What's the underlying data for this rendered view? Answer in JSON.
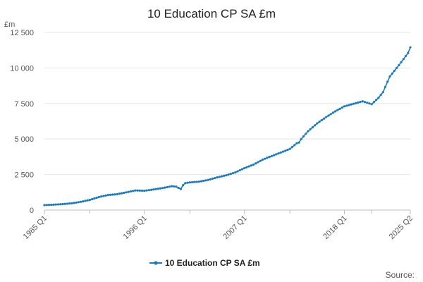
{
  "chart_data": {
    "type": "line",
    "title": "10 Education CP SA £m",
    "ylabel": "£m",
    "xlabel": "",
    "ylim": [
      0,
      12500
    ],
    "y_ticks": [
      "0",
      "2 500",
      "5 000",
      "7 500",
      "10 000",
      "12 500"
    ],
    "y_tick_values": [
      0,
      2500,
      5000,
      7500,
      10000,
      12500
    ],
    "x_tick_labels": [
      "1985 Q1",
      "1996 Q1",
      "2007 Q1",
      "2018 Q1",
      "2025 Q2"
    ],
    "x_range": [
      "1985 Q1",
      "2025 Q2"
    ],
    "grid": true,
    "legend_position": "bottom",
    "color": "#1a7bbf",
    "series": [
      {
        "name": "10 Education CP SA £m",
        "x": [
          "1985 Q1",
          "1986 Q1",
          "1987 Q1",
          "1988 Q1",
          "1989 Q1",
          "1990 Q1",
          "1991 Q1",
          "1992 Q1",
          "1993 Q1",
          "1994 Q1",
          "1995 Q1",
          "1996 Q1",
          "1997 Q1",
          "1998 Q1",
          "1999 Q1",
          "1999 Q3",
          "2000 Q1",
          "2000 Q2",
          "2000 Q3",
          "2001 Q1",
          "2002 Q1",
          "2003 Q1",
          "2004 Q1",
          "2005 Q1",
          "2006 Q1",
          "2007 Q1",
          "2008 Q1",
          "2009 Q1",
          "2010 Q1",
          "2011 Q1",
          "2012 Q1",
          "2012 Q4",
          "2013 Q1",
          "2013 Q2",
          "2014 Q1",
          "2015 Q1",
          "2016 Q1",
          "2017 Q1",
          "2018 Q1",
          "2019 Q1",
          "2020 Q1",
          "2021 Q1",
          "2021 Q2",
          "2021 Q4",
          "2022 Q2",
          "2023 Q1",
          "2024 Q1",
          "2025 Q1",
          "2025 Q2"
        ],
        "values": [
          350,
          380,
          420,
          480,
          580,
          720,
          920,
          1060,
          1120,
          1250,
          1380,
          1360,
          1450,
          1550,
          1680,
          1650,
          1480,
          1750,
          1900,
          1950,
          2000,
          2120,
          2300,
          2450,
          2650,
          2950,
          3200,
          3550,
          3800,
          4050,
          4300,
          4700,
          4750,
          5000,
          5550,
          6100,
          6550,
          6950,
          7300,
          7480,
          7650,
          7450,
          7600,
          7900,
          8300,
          9400,
          10200,
          11050,
          11450
        ]
      }
    ]
  },
  "source_label": "Source:"
}
